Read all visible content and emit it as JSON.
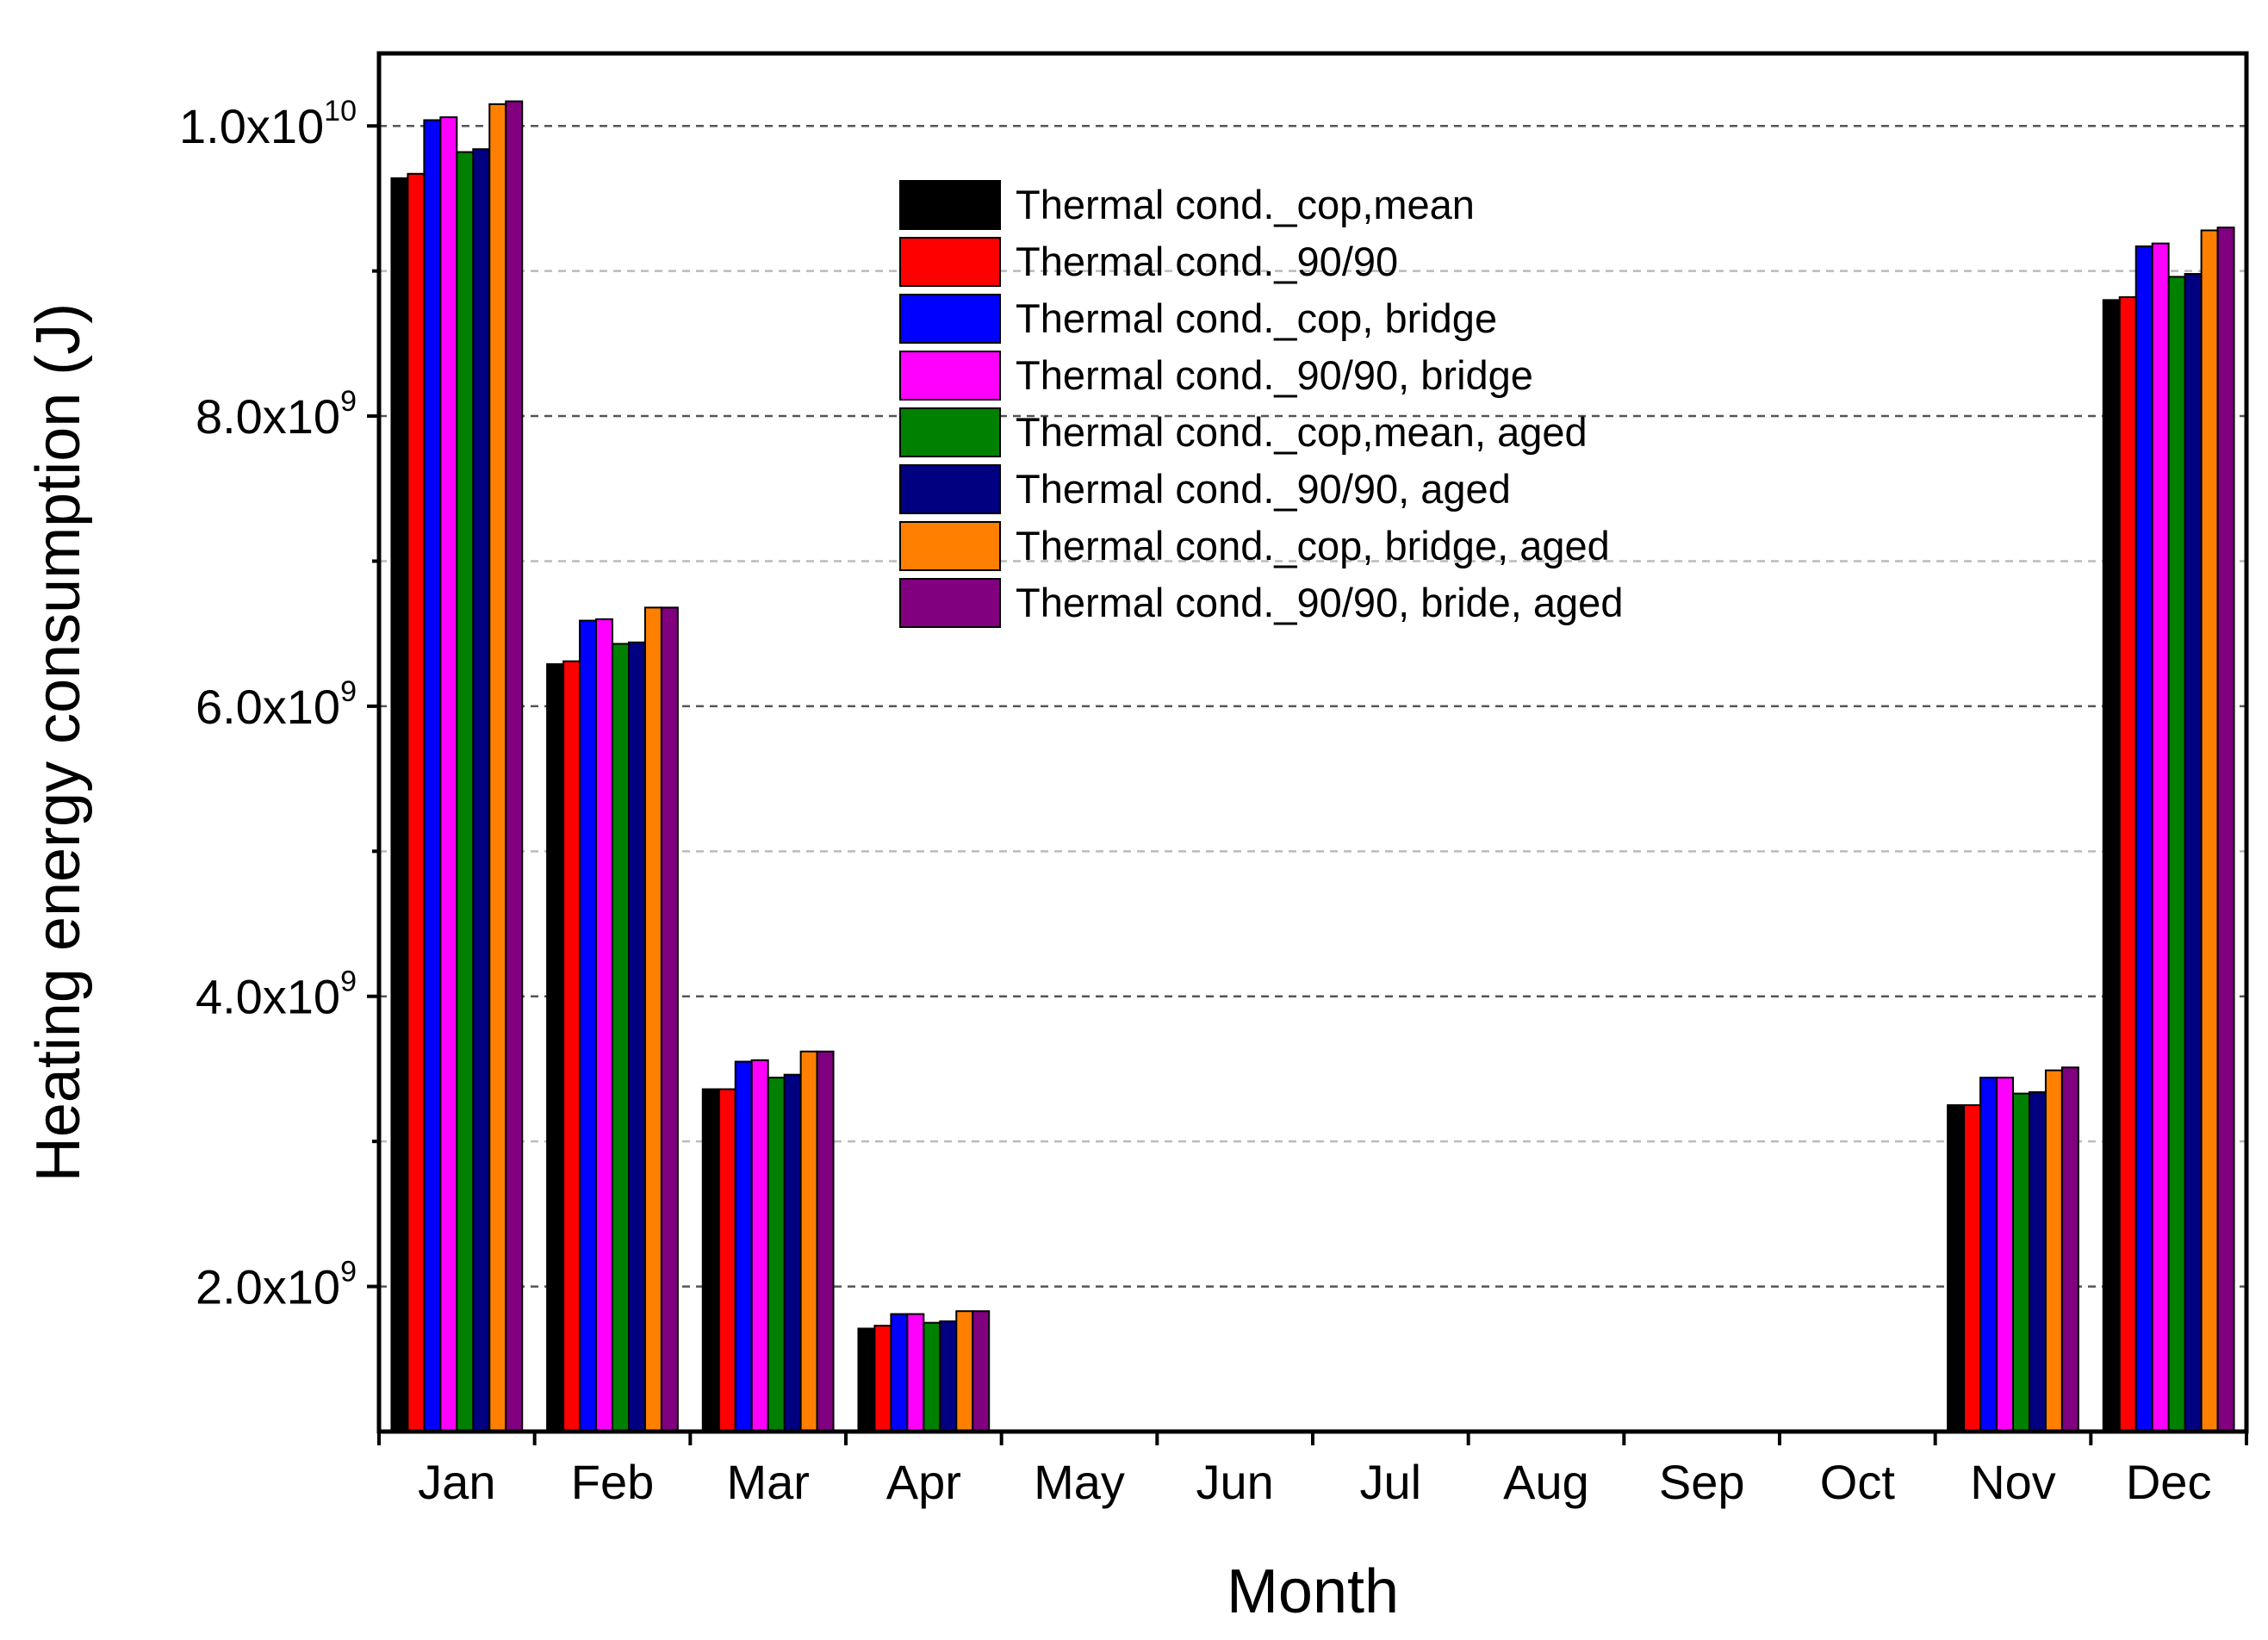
{
  "chart_data": {
    "type": "bar",
    "title": "",
    "xlabel": "Month",
    "ylabel": "Heating energy consumption (J)",
    "ylim": [
      1000000000,
      10500000000
    ],
    "y_scale": "linear",
    "grid": "horizontal dashed",
    "legend_position": "upper-center",
    "yticks": [
      {
        "value": 2000000000,
        "mantissa": "2.0x10",
        "exponent": "9"
      },
      {
        "value": 4000000000,
        "mantissa": "4.0x10",
        "exponent": "9"
      },
      {
        "value": 6000000000,
        "mantissa": "6.0x10",
        "exponent": "9"
      },
      {
        "value": 8000000000,
        "mantissa": "8.0x10",
        "exponent": "9"
      },
      {
        "value": 10000000000,
        "mantissa": "1.0x10",
        "exponent": "10"
      }
    ],
    "categories": [
      "Jan",
      "Feb",
      "Mar",
      "Apr",
      "May",
      "Jun",
      "Jul",
      "Aug",
      "Sep",
      "Oct",
      "Nov",
      "Dec"
    ],
    "series": [
      {
        "name": "Thermal cond._cop,mean",
        "color": "#000000",
        "values": [
          9640000000,
          6290000000,
          3360000000,
          1710000000,
          0,
          0,
          0,
          0,
          0,
          0,
          3250000000,
          8800000000
        ]
      },
      {
        "name": "Thermal cond._90/90",
        "color": "#ff0000",
        "values": [
          9670000000,
          6310000000,
          3360000000,
          1730000000,
          0,
          0,
          0,
          0,
          0,
          0,
          3250000000,
          8820000000
        ]
      },
      {
        "name": "Thermal cond._cop, bridge",
        "color": "#0000ff",
        "values": [
          10040000000,
          6590000000,
          3550000000,
          1810000000,
          0,
          0,
          0,
          0,
          0,
          0,
          3440000000,
          9170000000
        ]
      },
      {
        "name": "Thermal cond._90/90, bridge",
        "color": "#ff00ff",
        "values": [
          10060000000,
          6600000000,
          3560000000,
          1810000000,
          0,
          0,
          0,
          0,
          0,
          0,
          3440000000,
          9190000000
        ]
      },
      {
        "name": "Thermal cond._cop,mean, aged",
        "color": "#008000",
        "values": [
          9820000000,
          6430000000,
          3440000000,
          1750000000,
          0,
          0,
          0,
          0,
          0,
          0,
          3330000000,
          8960000000
        ]
      },
      {
        "name": "Thermal cond._90/90, aged",
        "color": "#000080",
        "values": [
          9840000000,
          6440000000,
          3460000000,
          1760000000,
          0,
          0,
          0,
          0,
          0,
          0,
          3340000000,
          8980000000
        ]
      },
      {
        "name": "Thermal cond._cop, bridge, aged",
        "color": "#ff8000",
        "values": [
          10150000000,
          6680000000,
          3620000000,
          1830000000,
          0,
          0,
          0,
          0,
          0,
          0,
          3490000000,
          9280000000
        ]
      },
      {
        "name": "Thermal cond._90/90, bride, aged",
        "color": "#800080",
        "values": [
          10170000000,
          6680000000,
          3620000000,
          1830000000,
          0,
          0,
          0,
          0,
          0,
          0,
          3510000000,
          9300000000
        ]
      }
    ]
  }
}
